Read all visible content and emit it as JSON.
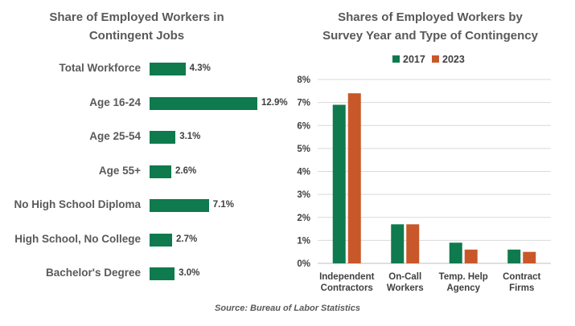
{
  "chart_data": [
    {
      "type": "bar",
      "orientation": "horizontal",
      "title": "Share of Employed Workers in Contingent Jobs",
      "categories": [
        "Total Workforce",
        "Age 16-24",
        "Age 25-54",
        "Age 55+",
        "No High School Diploma",
        "High School, No College",
        "Bachelor's Degree"
      ],
      "values": [
        4.3,
        12.9,
        3.1,
        2.6,
        7.1,
        2.7,
        3.0
      ],
      "value_labels": [
        "4.3%",
        "12.9%",
        "3.1%",
        "2.6%",
        "7.1%",
        "2.7%",
        "3.0%"
      ],
      "color": "#0e7a4e"
    },
    {
      "type": "bar",
      "title": "Shares of Employed Workers by Survey Year and Type of Contingency",
      "categories": [
        "Independent Contractors",
        "On-Call Workers",
        "Temp. Help Agency",
        "Contract Firms"
      ],
      "category_lines": [
        [
          "Independent",
          "Contractors"
        ],
        [
          "On-Call",
          "Workers"
        ],
        [
          "Temp. Help",
          "Agency"
        ],
        [
          "Contract",
          "Firms"
        ]
      ],
      "series": [
        {
          "name": "2017",
          "values": [
            6.9,
            1.7,
            0.9,
            0.6
          ],
          "color": "#0e7a4e"
        },
        {
          "name": "2023",
          "values": [
            7.4,
            1.7,
            0.6,
            0.5
          ],
          "color": "#c8582a"
        }
      ],
      "ylim": [
        0,
        8
      ],
      "yticks": [
        "0%",
        "1%",
        "2%",
        "3%",
        "4%",
        "5%",
        "6%",
        "7%",
        "8%"
      ],
      "grid": true,
      "legend": "top"
    }
  ],
  "left_title_lines": [
    "Share of Employed Workers in",
    "Contingent Jobs"
  ],
  "right_title_lines": [
    "Shares of Employed Workers by",
    "Survey Year and Type of Contingency"
  ],
  "source": "Source: Bureau of Labor Statistics"
}
